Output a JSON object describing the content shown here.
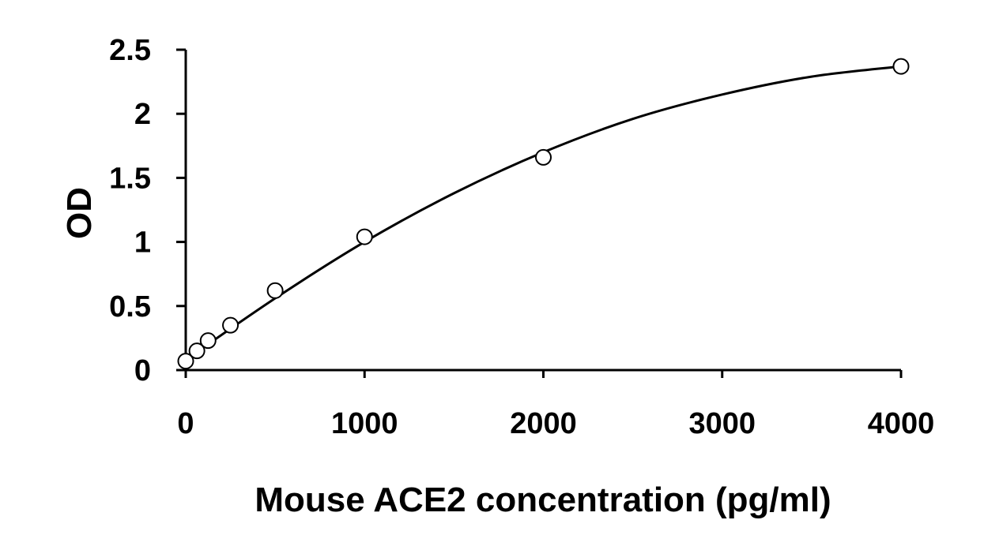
{
  "chart_data": {
    "type": "scatter",
    "title": "",
    "xlabel": "Mouse ACE2 concentration (pg/ml)",
    "ylabel": "OD",
    "xlim": [
      0,
      4000
    ],
    "ylim": [
      0,
      2.5
    ],
    "xticks": [
      0,
      1000,
      2000,
      3000,
      4000
    ],
    "xtick_labels": [
      "0",
      "1000",
      "2000",
      "3000",
      "4000"
    ],
    "yticks": [
      0,
      0.5,
      1,
      1.5,
      2,
      2.5
    ],
    "ytick_labels": [
      "0",
      "0.5",
      "1",
      "1.5",
      "2",
      "2.5"
    ],
    "grid": false,
    "legend": "none",
    "series": [
      {
        "marker": "open-circle",
        "x": [
          0,
          62.5,
          125,
          250,
          500,
          1000,
          2000,
          4000
        ],
        "y": [
          0.07,
          0.15,
          0.23,
          0.35,
          0.62,
          1.04,
          1.66,
          2.37
        ]
      }
    ],
    "fit_curve": {
      "type": "polynomial",
      "x": [
        0,
        500,
        1000,
        1500,
        2000,
        2500,
        3000,
        3500,
        4000
      ],
      "y": [
        0.08,
        0.56,
        1.0,
        1.38,
        1.7,
        1.96,
        2.15,
        2.29,
        2.37
      ]
    }
  }
}
